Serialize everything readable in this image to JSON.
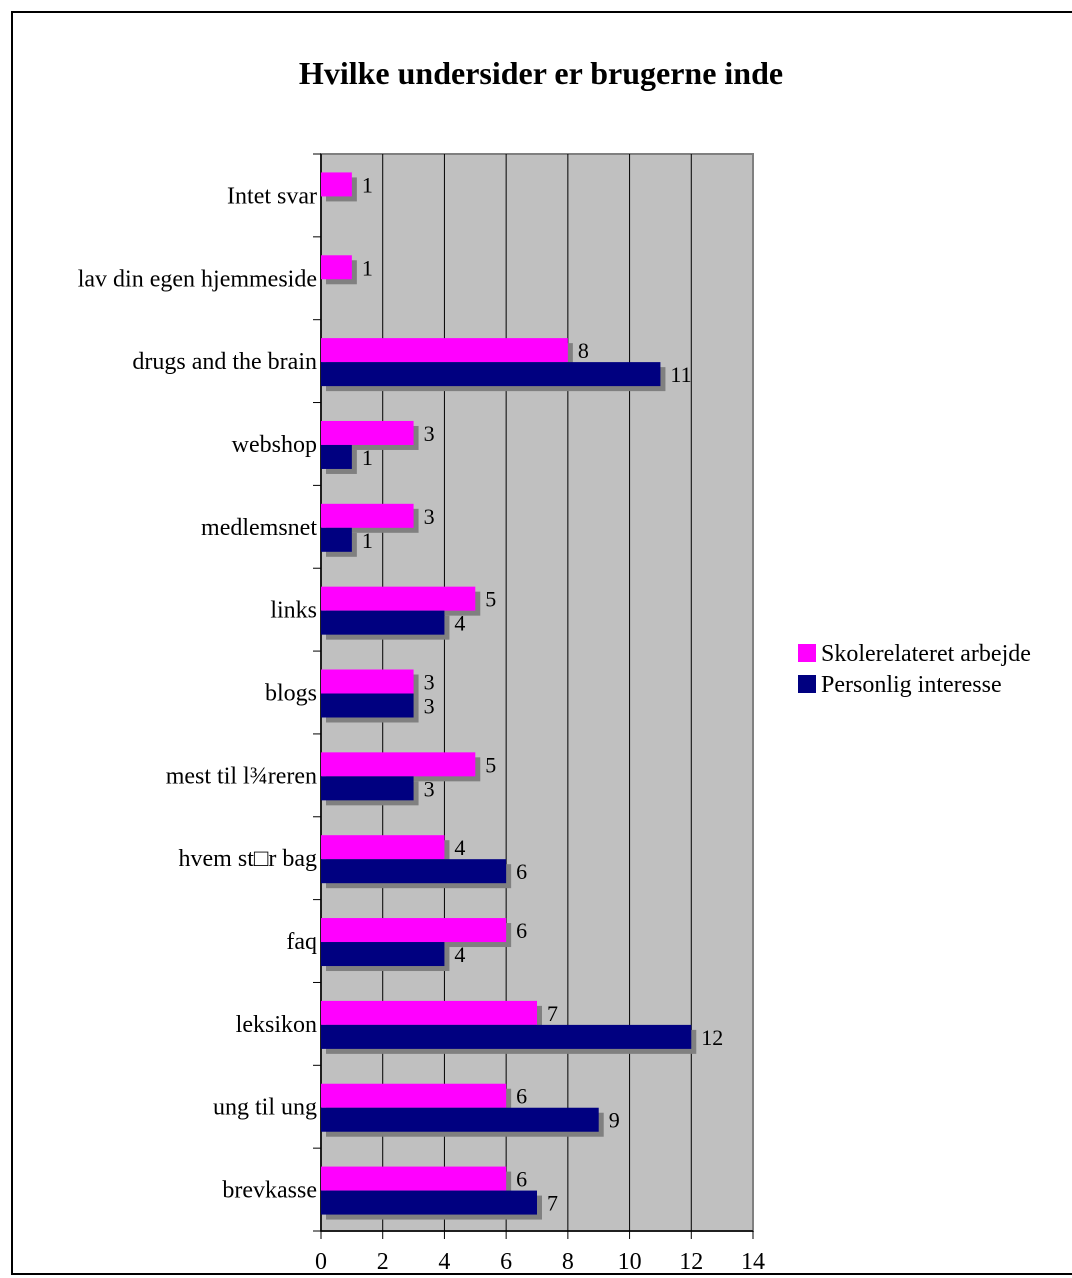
{
  "chart_data": {
    "type": "bar",
    "orientation": "horizontal",
    "title": "Hvilke undersider er brugerne inde",
    "categories": [
      "Intet svar",
      "lav din egen hjemmeside",
      "drugs and the brain",
      "webshop",
      "medlemsnet",
      "links",
      "blogs",
      "mest til l¾reren",
      "hvem st□r bag",
      "faq",
      "leksikon",
      "ung til ung",
      "brevkasse"
    ],
    "series": [
      {
        "name": "Skolerelateret arbejde",
        "color": "#ff00ff",
        "values": [
          1,
          1,
          8,
          3,
          3,
          5,
          3,
          5,
          4,
          6,
          7,
          6,
          6
        ]
      },
      {
        "name": "Personlig interesse",
        "color": "#000080",
        "values": [
          null,
          null,
          11,
          1,
          1,
          4,
          3,
          3,
          6,
          4,
          12,
          9,
          7
        ]
      }
    ],
    "xlim": [
      0,
      14
    ],
    "xticks": [
      0,
      2,
      4,
      6,
      8,
      10,
      12,
      14
    ],
    "xlabel": "",
    "ylabel": "",
    "grid": true,
    "legend": "right",
    "plot_background": "#c0c0c0",
    "shadow_color": "#808080"
  }
}
